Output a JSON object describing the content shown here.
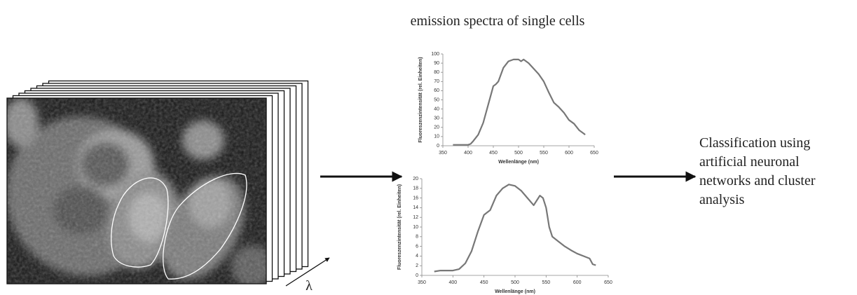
{
  "title": "emission spectra of single cells",
  "lambda_label": "λ",
  "classification": [
    "Classification using",
    "artificial neuronal",
    "networks and cluster",
    "analysis"
  ],
  "chart_data": [
    {
      "type": "line",
      "x_label": "Wellenlänge (nm)",
      "y_label": "Fluoreszenzintensität (rel. Einheiten)",
      "x": [
        370,
        380,
        390,
        400,
        405,
        410,
        420,
        430,
        440,
        450,
        455,
        460,
        470,
        480,
        490,
        500,
        505,
        510,
        520,
        530,
        540,
        550,
        560,
        570,
        580,
        590,
        600,
        610,
        620,
        630,
        632
      ],
      "values": [
        1,
        1,
        1,
        1,
        2,
        5,
        12,
        25,
        45,
        65,
        67,
        70,
        85,
        92,
        94,
        94,
        92,
        94,
        90,
        84,
        78,
        70,
        58,
        47,
        42,
        36,
        28,
        24,
        17,
        13,
        12
      ],
      "color": "#777777",
      "xlim": [
        350,
        650
      ],
      "xticks": [
        350,
        400,
        450,
        500,
        550,
        600,
        650
      ],
      "ylim": [
        0,
        100
      ],
      "yticks": [
        0,
        10,
        20,
        30,
        40,
        50,
        60,
        70,
        80,
        90,
        100
      ]
    },
    {
      "type": "line",
      "x_label": "Wellenlänge (nm)",
      "y_label": "Fluoreszenzintensität (rel. Einheiten)",
      "x": [
        370,
        380,
        390,
        400,
        410,
        420,
        430,
        440,
        450,
        455,
        460,
        470,
        480,
        490,
        500,
        510,
        520,
        530,
        540,
        545,
        550,
        555,
        560,
        570,
        580,
        590,
        600,
        610,
        620,
        625,
        630
      ],
      "values": [
        0.8,
        1,
        1,
        1,
        1.3,
        2.5,
        5,
        9,
        12.5,
        13,
        13.5,
        16.5,
        18,
        18.8,
        18.5,
        17.5,
        16,
        14.5,
        16.5,
        16,
        14,
        10,
        8,
        7,
        6,
        5.2,
        4.5,
        4,
        3.5,
        2.3,
        2.1
      ],
      "color": "#777777",
      "xlim": [
        350,
        650
      ],
      "xticks": [
        350,
        400,
        450,
        500,
        550,
        600,
        650
      ],
      "ylim": [
        0,
        20
      ],
      "yticks": [
        0,
        2,
        4,
        6,
        8,
        10,
        12,
        14,
        16,
        18,
        20
      ]
    }
  ]
}
